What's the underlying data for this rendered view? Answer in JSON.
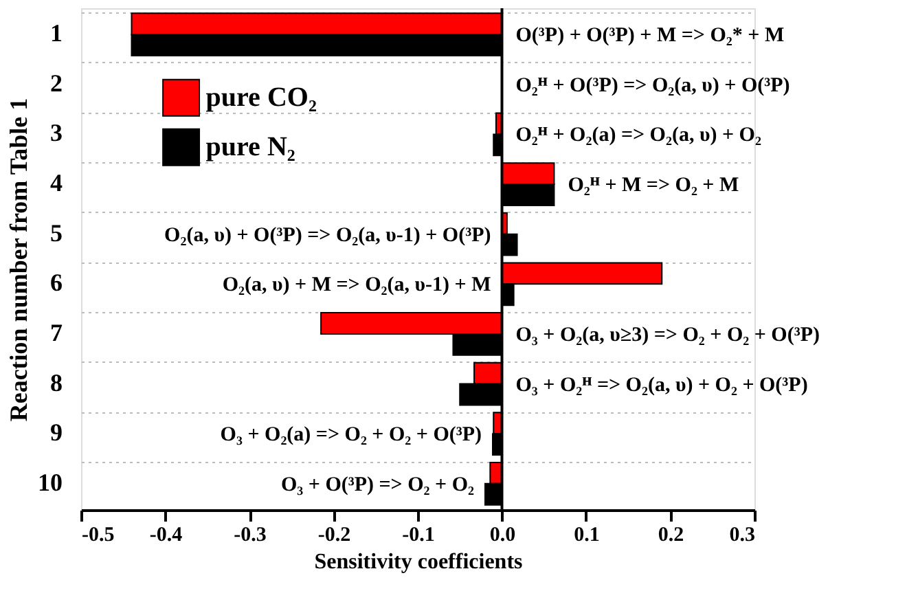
{
  "chart_data": {
    "type": "bar",
    "orientation": "horizontal",
    "xlabel": "Sensitivity coefficients",
    "ylabel": "Reaction number from Table 1",
    "categories": [
      "1",
      "2",
      "3",
      "4",
      "5",
      "6",
      "7",
      "8",
      "9",
      "10"
    ],
    "series": [
      {
        "name": "pure CO₂",
        "color": "#ff0000",
        "values": [
          -0.44,
          null,
          -0.007,
          0.062,
          0.006,
          0.19,
          -0.215,
          -0.033,
          -0.01,
          -0.014
        ]
      },
      {
        "name": "pure N₂",
        "color": "#000000",
        "values": [
          -0.44,
          null,
          -0.01,
          0.062,
          0.018,
          0.014,
          -0.058,
          -0.05,
          -0.011,
          -0.02
        ]
      }
    ],
    "xlim": [
      -0.5,
      0.3
    ],
    "xticks": [
      -0.5,
      -0.4,
      -0.3,
      -0.2,
      -0.1,
      {
        "value": 0,
        "label": "0.0"
      },
      0.1,
      0.2,
      0.3
    ],
    "grid": "y",
    "legend": "top left",
    "annotations": [
      "O(³P) + O(³P) + M => O₂* + M",
      "O₂ᴴ + O(³P) => O₂(a, υ) + O(³P)",
      "O₂ᴴ + O₂(a) => O₂(a, υ) + O₂",
      "O₂ᴴ + M => O₂ + M",
      "O₂(a, υ) + O(³P) => O₂(a, υ-1) + O(³P)",
      "O₂(a, υ) + M => O₂(a, υ-1) + M",
      "O₃ + O₂(a, υ≥3) => O₂ + O₂ + O(³P)",
      "O₃ + O₂ᴴ => O₂(a, υ) + O₂ + O(³P)",
      "O₃ + O₂(a) => O₂ + O₂ + O(³P)",
      "O₃ + O(³P) => O₂ + O₂"
    ]
  }
}
